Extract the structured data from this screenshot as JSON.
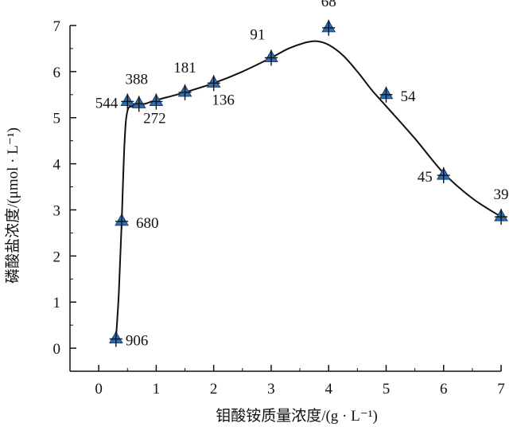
{
  "chart_data": {
    "type": "scatter",
    "title": "",
    "xlabel": "钼酸铵质量浓度/(g · L⁻¹)",
    "ylabel": "磷酸盐浓度/(μmol · L⁻¹)",
    "xlim": [
      -0.5,
      7.0
    ],
    "ylim": [
      -0.5,
      7.0
    ],
    "xticks": [
      "0",
      "1",
      "2",
      "3",
      "4",
      "5",
      "6",
      "7"
    ],
    "yticks": [
      "0",
      "1",
      "2",
      "3",
      "4",
      "5",
      "6",
      "7"
    ],
    "grid": false,
    "marker_color": "#2f6db5",
    "points": [
      {
        "x": 0.3,
        "y": 0.2,
        "label": "906"
      },
      {
        "x": 0.4,
        "y": 2.75,
        "label": "680"
      },
      {
        "x": 0.5,
        "y": 5.35,
        "label": "544"
      },
      {
        "x": 0.7,
        "y": 5.3,
        "label": "388"
      },
      {
        "x": 1.0,
        "y": 5.35,
        "label": "272"
      },
      {
        "x": 1.5,
        "y": 5.55,
        "label": "181"
      },
      {
        "x": 2.0,
        "y": 5.75,
        "label": "136"
      },
      {
        "x": 3.0,
        "y": 6.3,
        "label": "91"
      },
      {
        "x": 4.0,
        "y": 6.95,
        "label": "68"
      },
      {
        "x": 5.0,
        "y": 5.5,
        "label": "54"
      },
      {
        "x": 6.0,
        "y": 3.75,
        "label": "45"
      },
      {
        "x": 7.0,
        "y": 2.85,
        "label": "39"
      }
    ],
    "fit_curve": [
      [
        0.3,
        0.2
      ],
      [
        0.35,
        1.2
      ],
      [
        0.4,
        2.75
      ],
      [
        0.45,
        4.5
      ],
      [
        0.5,
        5.15
      ],
      [
        0.6,
        5.25
      ],
      [
        0.8,
        5.3
      ],
      [
        1.0,
        5.38
      ],
      [
        1.5,
        5.55
      ],
      [
        2.0,
        5.75
      ],
      [
        2.5,
        6.0
      ],
      [
        3.0,
        6.3
      ],
      [
        3.3,
        6.5
      ],
      [
        3.6,
        6.63
      ],
      [
        3.8,
        6.66
      ],
      [
        4.0,
        6.58
      ],
      [
        4.25,
        6.35
      ],
      [
        4.5,
        6.0
      ],
      [
        4.75,
        5.6
      ],
      [
        5.0,
        5.25
      ],
      [
        5.5,
        4.55
      ],
      [
        6.0,
        3.8
      ],
      [
        6.5,
        3.25
      ],
      [
        7.0,
        2.85
      ]
    ]
  }
}
